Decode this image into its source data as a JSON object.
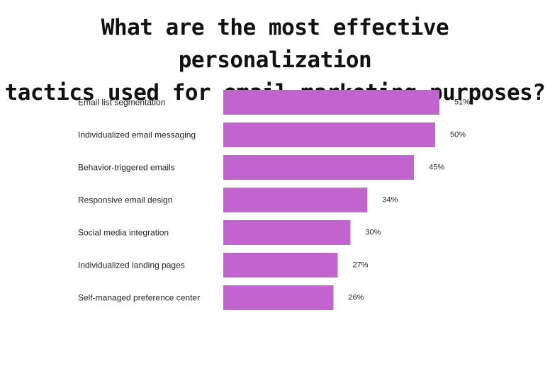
{
  "chart_data": {
    "type": "bar",
    "orientation": "horizontal",
    "title_lines": [
      "What are the most effective personalization",
      "tactics used for email marketing purposes?"
    ],
    "categories": [
      "Email list segmentation",
      "Individualized email messaging",
      "Behavior-triggered emails",
      "Responsive email design",
      "Social media integration",
      "Individualized landing pages",
      "Self-managed preference center"
    ],
    "values": [
      51,
      50,
      45,
      34,
      30,
      27,
      26
    ],
    "value_labels": [
      "51%",
      "50%",
      "45%",
      "34%",
      "30%",
      "27%",
      "26%"
    ],
    "unit": "%",
    "xlim": [
      0,
      51
    ],
    "grid": false,
    "legend": "none",
    "bar_color": "#c363cf"
  }
}
